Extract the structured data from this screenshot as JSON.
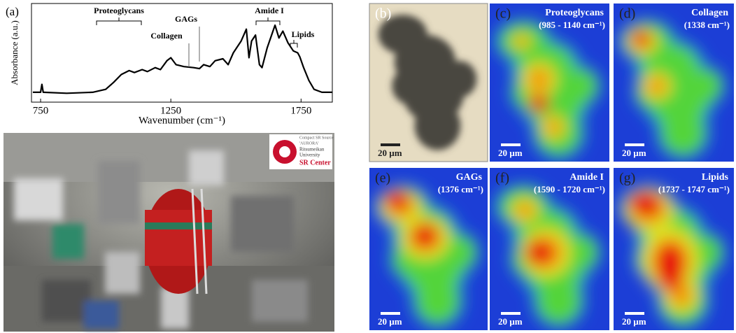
{
  "chart_data": {
    "type": "line",
    "panel_label": "(a)",
    "xlabel": "Wavenumber (cm⁻¹)",
    "ylabel": "Absorbance (a.u.)",
    "x": [
      720,
      750,
      755,
      760,
      850,
      950,
      1000,
      1030,
      1060,
      1090,
      1110,
      1140,
      1160,
      1190,
      1210,
      1235,
      1250,
      1270,
      1300,
      1338,
      1360,
      1376,
      1400,
      1420,
      1450,
      1470,
      1490,
      1520,
      1540,
      1550,
      1560,
      1575,
      1590,
      1600,
      1620,
      1650,
      1665,
      1680,
      1700,
      1720,
      1737,
      1745,
      1760,
      1780,
      1800,
      1830,
      1870
    ],
    "values": [
      0.1,
      0.1,
      0.18,
      0.1,
      0.09,
      0.1,
      0.13,
      0.2,
      0.28,
      0.32,
      0.3,
      0.33,
      0.31,
      0.35,
      0.33,
      0.42,
      0.45,
      0.38,
      0.36,
      0.35,
      0.34,
      0.38,
      0.36,
      0.42,
      0.44,
      0.38,
      0.5,
      0.62,
      0.74,
      0.45,
      0.62,
      0.68,
      0.38,
      0.35,
      0.55,
      0.78,
      0.65,
      0.72,
      0.6,
      0.52,
      0.5,
      0.46,
      0.35,
      0.22,
      0.13,
      0.1,
      0.1
    ],
    "color": "#000000",
    "xlim": [
      715,
      1870
    ],
    "xticks": [
      750,
      1250,
      1750
    ],
    "ylim": [
      0,
      1
    ],
    "annotations": [
      "Proteoglycans",
      "Collagen",
      "GAGs",
      "Amide I",
      "Lipids"
    ]
  },
  "photo": {
    "logo": [
      "Compact SR Source",
      "'AURORA'",
      "Ritsumeikan",
      "University",
      "SR Center"
    ]
  },
  "panels": [
    {
      "label": "(b)",
      "scale": "20 µm"
    },
    {
      "label": "(c)",
      "title": "Proteoglycans",
      "subtitle": "(985 - 1140 cm⁻¹)",
      "scale": "20 µm"
    },
    {
      "label": "(d)",
      "title": "Collagen",
      "subtitle": "(1338 cm⁻¹)",
      "scale": "20 µm"
    },
    {
      "label": "(e)",
      "title": "GAGs",
      "subtitle": "(1376 cm⁻¹)",
      "scale": "20 µm"
    },
    {
      "label": "(f)",
      "title": "Amide I",
      "subtitle": "(1590 - 1720 cm⁻¹)",
      "scale": "20 µm"
    },
    {
      "label": "(g)",
      "title": "Lipids",
      "subtitle": "(1737 - 1747 cm⁻¹)",
      "scale": "20 µm"
    }
  ]
}
